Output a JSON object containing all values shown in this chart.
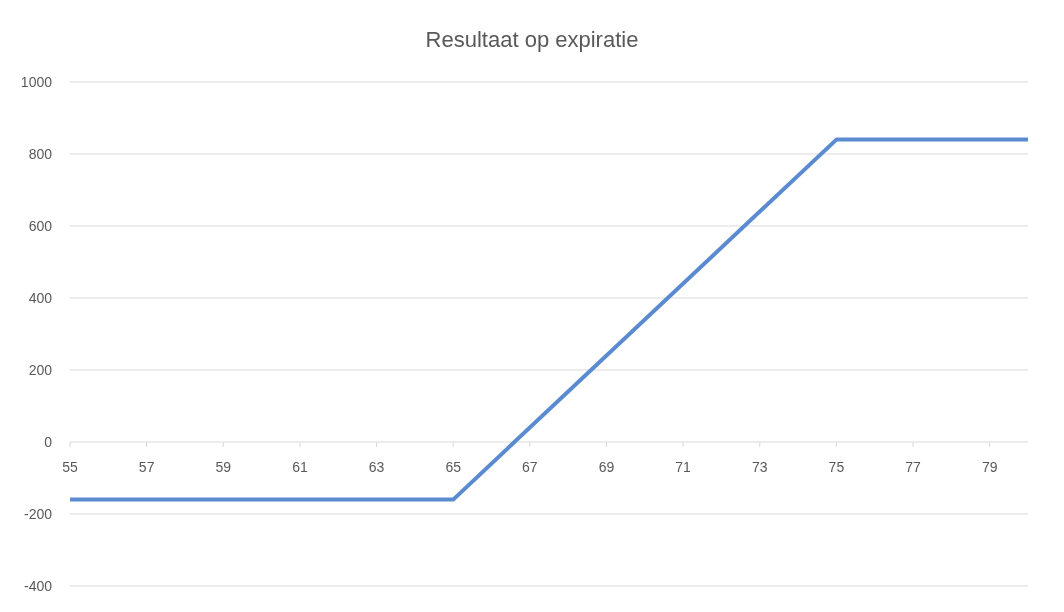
{
  "chart_data": {
    "type": "line",
    "title": "Resultaat op expiratie",
    "x": [
      55,
      65,
      75,
      80
    ],
    "series": [
      {
        "color": "#5a8bd0",
        "values": [
          -160,
          -160,
          840,
          840
        ]
      }
    ],
    "xlim": [
      55,
      80
    ],
    "xticks": [
      55,
      57,
      59,
      61,
      63,
      65,
      67,
      69,
      71,
      73,
      75,
      77,
      79
    ],
    "ylim": [
      -400,
      1000
    ],
    "yticks": [
      -400,
      -200,
      0,
      200,
      400,
      600,
      800,
      1000
    ],
    "grid": "y",
    "legend": false,
    "marker": "none",
    "line_style": "solid"
  }
}
